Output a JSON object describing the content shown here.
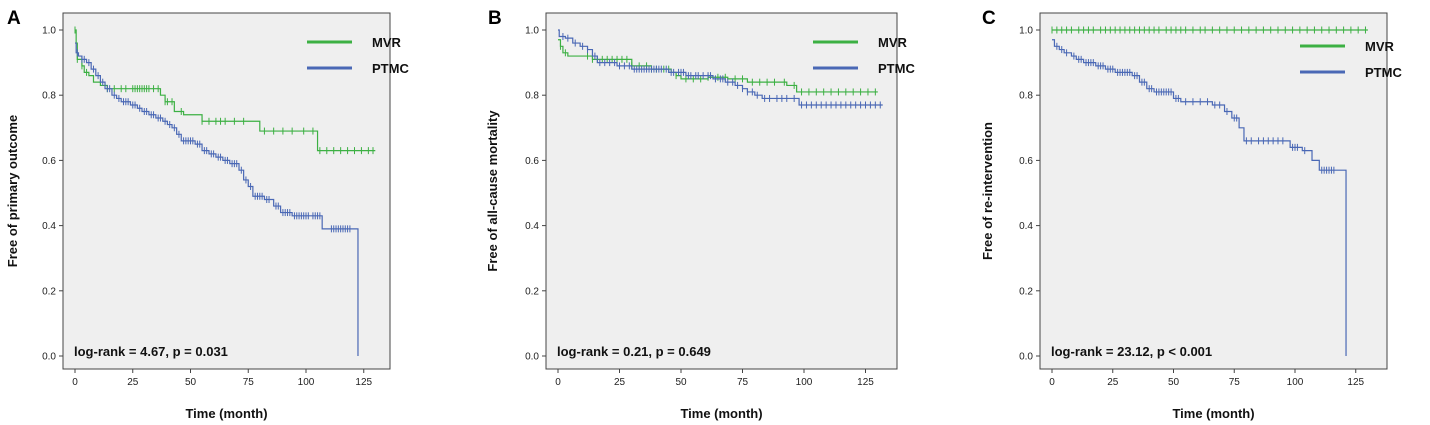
{
  "colors": {
    "MVR": "#3cb043",
    "PTMC": "#4a68b5",
    "plot_bg": "#efefef",
    "axis": "#444444"
  },
  "chart_data": [
    {
      "panel": "A",
      "type": "line",
      "title": "",
      "xlabel": "Time (month)",
      "ylabel": "Free of primary outcome",
      "xlim": [
        0,
        130
      ],
      "ylim": [
        0,
        1.0
      ],
      "xticks": [
        0,
        25,
        50,
        75,
        100,
        125
      ],
      "yticks": [
        0.0,
        0.2,
        0.4,
        0.6,
        0.8,
        1.0
      ],
      "annotation": "log-rank = 4.67, p = 0.031",
      "legend": [
        {
          "name": "MVR"
        },
        {
          "name": "PTMC"
        }
      ],
      "series": [
        {
          "name": "MVR",
          "steps": [
            [
              0,
              1.0
            ],
            [
              0.5,
              0.96
            ],
            [
              1,
              0.91
            ],
            [
              3,
              0.89
            ],
            [
              4,
              0.87
            ],
            [
              6,
              0.86
            ],
            [
              8,
              0.84
            ],
            [
              11,
              0.83
            ],
            [
              14,
              0.82
            ],
            [
              37,
              0.8
            ],
            [
              39,
              0.78
            ],
            [
              43,
              0.75
            ],
            [
              47,
              0.74
            ],
            [
              55,
              0.72
            ],
            [
              80,
              0.69
            ],
            [
              105,
              0.63
            ],
            [
              130,
              0.63
            ]
          ],
          "censored": [
            0,
            1,
            3,
            5,
            14,
            17,
            20,
            22,
            25,
            26,
            27,
            28,
            29,
            30,
            31,
            32,
            34,
            36,
            39,
            40,
            42,
            46,
            55,
            58,
            61,
            63,
            65,
            69,
            73,
            82,
            86,
            90,
            94,
            99,
            103,
            106,
            109,
            112,
            115,
            118,
            121,
            124,
            127,
            129
          ]
        },
        {
          "name": "PTMC",
          "steps": [
            [
              0,
              0.96
            ],
            [
              0.5,
              0.93
            ],
            [
              1.5,
              0.92
            ],
            [
              3,
              0.91
            ],
            [
              5,
              0.9
            ],
            [
              7,
              0.88
            ],
            [
              9,
              0.86
            ],
            [
              11,
              0.84
            ],
            [
              13,
              0.82
            ],
            [
              16,
              0.8
            ],
            [
              18,
              0.79
            ],
            [
              20,
              0.78
            ],
            [
              24,
              0.77
            ],
            [
              27,
              0.76
            ],
            [
              29,
              0.75
            ],
            [
              32,
              0.74
            ],
            [
              35,
              0.73
            ],
            [
              38,
              0.72
            ],
            [
              40,
              0.71
            ],
            [
              42,
              0.7
            ],
            [
              44,
              0.68
            ],
            [
              46,
              0.66
            ],
            [
              52,
              0.65
            ],
            [
              55,
              0.63
            ],
            [
              58,
              0.62
            ],
            [
              61,
              0.61
            ],
            [
              64,
              0.6
            ],
            [
              67,
              0.59
            ],
            [
              71,
              0.57
            ],
            [
              73,
              0.54
            ],
            [
              75,
              0.52
            ],
            [
              77,
              0.49
            ],
            [
              82,
              0.48
            ],
            [
              86,
              0.46
            ],
            [
              89,
              0.44
            ],
            [
              94,
              0.43
            ],
            [
              102,
              0.43
            ],
            [
              107,
              0.39
            ],
            [
              115,
              0.39
            ],
            [
              122,
              0.39
            ],
            [
              122.5,
              0.0
            ]
          ],
          "censored": [
            1,
            3,
            4,
            6,
            8,
            10,
            12,
            14,
            15,
            17,
            19,
            21,
            22,
            23,
            25,
            26,
            28,
            30,
            31,
            33,
            34,
            36,
            37,
            39,
            41,
            43,
            45,
            47,
            48,
            49,
            50,
            51,
            53,
            54,
            56,
            57,
            59,
            60,
            62,
            63,
            65,
            66,
            68,
            69,
            70,
            72,
            74,
            76,
            78,
            79,
            80,
            81,
            83,
            84,
            87,
            88,
            90,
            91,
            92,
            93,
            95,
            96,
            97,
            98,
            99,
            100,
            101,
            103,
            104,
            105,
            106,
            111,
            112,
            113,
            114,
            115,
            116,
            117,
            118,
            119
          ]
        }
      ]
    },
    {
      "panel": "B",
      "type": "line",
      "title": "",
      "xlabel": "Time (month)",
      "ylabel": "Free of all-cause mortality",
      "xlim": [
        0,
        130
      ],
      "ylim": [
        0,
        1.0
      ],
      "xticks": [
        0,
        25,
        50,
        75,
        100,
        125
      ],
      "yticks": [
        0.0,
        0.2,
        0.4,
        0.6,
        0.8,
        1.0
      ],
      "annotation": "log-rank = 0.21, p = 0.649",
      "legend": [
        {
          "name": "MVR"
        },
        {
          "name": "PTMC"
        }
      ],
      "series": [
        {
          "name": "MVR",
          "steps": [
            [
              0,
              0.97
            ],
            [
              1,
              0.95
            ],
            [
              2,
              0.93
            ],
            [
              4,
              0.92
            ],
            [
              14,
              0.91
            ],
            [
              30,
              0.89
            ],
            [
              38,
              0.88
            ],
            [
              46,
              0.87
            ],
            [
              48,
              0.86
            ],
            [
              50,
              0.85
            ],
            [
              61,
              0.855
            ],
            [
              69,
              0.85
            ],
            [
              77,
              0.84
            ],
            [
              93,
              0.83
            ],
            [
              97,
              0.81
            ],
            [
              130,
              0.81
            ]
          ],
          "censored": [
            1,
            3,
            12,
            14,
            16,
            18,
            20,
            22,
            24,
            26,
            28,
            30,
            33,
            36,
            38,
            40,
            43,
            45,
            48,
            52,
            55,
            58,
            61,
            65,
            68,
            72,
            75,
            79,
            82,
            85,
            88,
            92,
            96,
            99,
            102,
            105,
            108,
            111,
            114,
            117,
            120,
            123,
            126,
            129
          ]
        },
        {
          "name": "PTMC",
          "steps": [
            [
              0,
              1.0
            ],
            [
              0.5,
              0.98
            ],
            [
              3,
              0.975
            ],
            [
              6,
              0.96
            ],
            [
              9,
              0.95
            ],
            [
              12,
              0.94
            ],
            [
              14,
              0.92
            ],
            [
              16,
              0.9
            ],
            [
              24,
              0.89
            ],
            [
              30,
              0.88
            ],
            [
              45,
              0.87
            ],
            [
              52,
              0.86
            ],
            [
              58,
              0.86
            ],
            [
              63,
              0.85
            ],
            [
              68,
              0.84
            ],
            [
              72,
              0.83
            ],
            [
              75,
              0.82
            ],
            [
              77,
              0.81
            ],
            [
              80,
              0.8
            ],
            [
              83,
              0.79
            ],
            [
              94,
              0.79
            ],
            [
              98,
              0.77
            ],
            [
              132,
              0.77
            ]
          ],
          "censored": [
            2,
            4,
            7,
            10,
            12,
            15,
            17,
            19,
            21,
            23,
            25,
            27,
            29,
            31,
            32,
            33,
            34,
            35,
            36,
            37,
            38,
            39,
            40,
            41,
            42,
            44,
            46,
            47,
            49,
            50,
            51,
            53,
            54,
            56,
            57,
            59,
            61,
            62,
            64,
            66,
            67,
            69,
            71,
            73,
            75,
            77,
            79,
            81,
            84,
            86,
            89,
            91,
            93,
            96,
            99,
            101,
            103,
            105,
            107,
            109,
            111,
            113,
            115,
            117,
            119,
            121,
            123,
            125,
            127,
            129,
            131
          ]
        }
      ]
    },
    {
      "panel": "C",
      "type": "line",
      "title": "",
      "xlabel": "Time (month)",
      "ylabel": "Free of re-intervention",
      "xlim": [
        0,
        130
      ],
      "ylim": [
        0,
        1.0
      ],
      "xticks": [
        0,
        25,
        50,
        75,
        100,
        125
      ],
      "yticks": [
        0.0,
        0.2,
        0.4,
        0.6,
        0.8,
        1.0
      ],
      "annotation": "log-rank = 23.12, p < 0.001",
      "legend": [
        {
          "name": "MVR"
        },
        {
          "name": "PTMC"
        }
      ],
      "series": [
        {
          "name": "MVR",
          "steps": [
            [
              0,
              1.0
            ],
            [
              130,
              1.0
            ]
          ],
          "censored": [
            0,
            2,
            4,
            6,
            8,
            11,
            13,
            15,
            17,
            20,
            22,
            24,
            26,
            28,
            30,
            32,
            34,
            36,
            38,
            40,
            42,
            44,
            47,
            49,
            51,
            53,
            55,
            58,
            61,
            63,
            66,
            69,
            72,
            75,
            78,
            81,
            84,
            87,
            90,
            93,
            96,
            99,
            102,
            105,
            108,
            111,
            114,
            117,
            120,
            123,
            126,
            129
          ]
        },
        {
          "name": "PTMC",
          "steps": [
            [
              0,
              0.97
            ],
            [
              1,
              0.95
            ],
            [
              3,
              0.94
            ],
            [
              5,
              0.93
            ],
            [
              8,
              0.92
            ],
            [
              10,
              0.91
            ],
            [
              13,
              0.9
            ],
            [
              18,
              0.89
            ],
            [
              22,
              0.88
            ],
            [
              26,
              0.87
            ],
            [
              33,
              0.86
            ],
            [
              36,
              0.84
            ],
            [
              39,
              0.82
            ],
            [
              42,
              0.81
            ],
            [
              50,
              0.79
            ],
            [
              53,
              0.78
            ],
            [
              66,
              0.77
            ],
            [
              71,
              0.75
            ],
            [
              74,
              0.73
            ],
            [
              77,
              0.7
            ],
            [
              79,
              0.66
            ],
            [
              98,
              0.64
            ],
            [
              103,
              0.63
            ],
            [
              107,
              0.6
            ],
            [
              110,
              0.57
            ],
            [
              120,
              0.57
            ],
            [
              121,
              0.0
            ]
          ],
          "censored": [
            2,
            4,
            6,
            9,
            11,
            12,
            14,
            15,
            16,
            17,
            19,
            20,
            21,
            23,
            24,
            25,
            27,
            28,
            29,
            30,
            31,
            32,
            34,
            35,
            37,
            38,
            40,
            41,
            43,
            44,
            45,
            46,
            47,
            48,
            49,
            51,
            52,
            55,
            58,
            61,
            64,
            67,
            69,
            72,
            75,
            76,
            80,
            82,
            85,
            87,
            89,
            91,
            93,
            95,
            99,
            100,
            101,
            104,
            111,
            112,
            113,
            114,
            115,
            116
          ]
        }
      ]
    }
  ]
}
